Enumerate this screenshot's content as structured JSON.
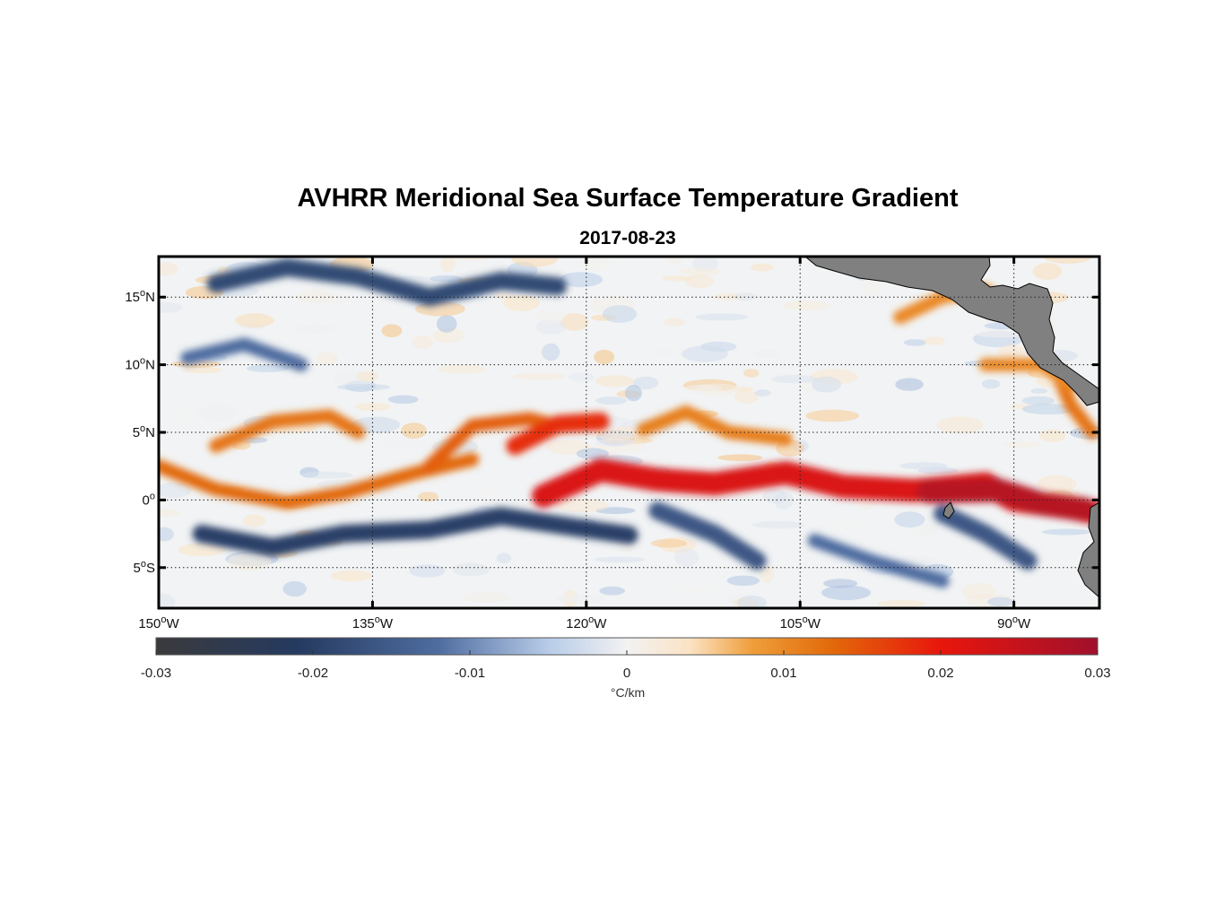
{
  "title": "AVHRR Meridional Sea Surface Temperature Gradient",
  "subtitle": "2017-08-23",
  "map": {
    "lon_range": [
      -150,
      -84
    ],
    "lat_range": [
      -8,
      18
    ],
    "lon_ticks": [
      {
        "value": -150,
        "label": "150°W"
      },
      {
        "value": -135,
        "label": "135°W"
      },
      {
        "value": -120,
        "label": "120°W"
      },
      {
        "value": -105,
        "label": "105°W"
      },
      {
        "value": -90,
        "label": "90°W"
      }
    ],
    "lat_ticks": [
      {
        "value": 15,
        "label": "15°N"
      },
      {
        "value": 10,
        "label": "10°N"
      },
      {
        "value": 5,
        "label": "5°N"
      },
      {
        "value": 0,
        "label": "0°"
      },
      {
        "value": -5,
        "label": "5°S"
      }
    ],
    "land_color": "#808080"
  },
  "colorbar": {
    "min": -0.03,
    "max": 0.03,
    "tick_labels": [
      "-0.03",
      "-0.02",
      "-0.01",
      "0",
      "0.01",
      "0.02",
      "0.03"
    ],
    "units": "°C/km",
    "stops": [
      {
        "v": -0.03,
        "c": "#3a3a3c"
      },
      {
        "v": -0.021,
        "c": "#253a60"
      },
      {
        "v": -0.012,
        "c": "#4f6da0"
      },
      {
        "v": -0.005,
        "c": "#b8cce8"
      },
      {
        "v": 0,
        "c": "#f2f2f2"
      },
      {
        "v": 0.004,
        "c": "#fbe3c4"
      },
      {
        "v": 0.008,
        "c": "#ef9e3a"
      },
      {
        "v": 0.013,
        "c": "#e26a0a"
      },
      {
        "v": 0.02,
        "c": "#e8160c"
      },
      {
        "v": 0.03,
        "c": "#a0102c"
      }
    ]
  },
  "features": [
    {
      "name": "equatorial-front",
      "value": 0.022,
      "pts": [
        [
          -123,
          0.3
        ],
        [
          -119,
          2.2
        ],
        [
          -115,
          1.5
        ],
        [
          -111,
          1.2
        ],
        [
          -106,
          2.0
        ],
        [
          -102,
          1.0
        ],
        [
          -97,
          0.7
        ],
        [
          -92,
          1.2
        ],
        [
          -90,
          0.0
        ],
        [
          -86,
          -0.6
        ],
        [
          -84,
          -1.0
        ]
      ]
    },
    {
      "name": "front-high-east",
      "value": 0.027,
      "pts": [
        [
          -96,
          0.6
        ],
        [
          -91,
          0.7
        ],
        [
          -88,
          -0.3
        ],
        [
          -85,
          -0.7
        ]
      ]
    },
    {
      "name": "tiw-crest-1",
      "value": 0.013,
      "pts": [
        [
          -150,
          2.5
        ],
        [
          -146,
          0.8
        ],
        [
          -141,
          -0.2
        ],
        [
          -137,
          0.5
        ],
        [
          -132,
          2.0
        ],
        [
          -128,
          3.0
        ]
      ]
    },
    {
      "name": "tiw-crest-2",
      "value": 0.012,
      "pts": [
        [
          -146,
          4.0
        ],
        [
          -142,
          5.8
        ],
        [
          -138,
          6.2
        ],
        [
          -136,
          5.0
        ]
      ]
    },
    {
      "name": "tiw-crest-3",
      "value": 0.014,
      "pts": [
        [
          -131,
          2.5
        ],
        [
          -128,
          5.5
        ],
        [
          -124,
          6.0
        ],
        [
          -122,
          5.5
        ]
      ]
    },
    {
      "name": "tiw-crest-4",
      "value": 0.018,
      "pts": [
        [
          -125,
          4.0
        ],
        [
          -122,
          5.6
        ],
        [
          -119,
          5.8
        ]
      ]
    },
    {
      "name": "tiw-crest-5",
      "value": 0.011,
      "pts": [
        [
          -116,
          5.2
        ],
        [
          -113,
          6.5
        ],
        [
          -110,
          5.0
        ],
        [
          -106,
          4.5
        ]
      ]
    },
    {
      "name": "south-cold-band-1",
      "value": -0.02,
      "pts": [
        [
          -147,
          -2.5
        ],
        [
          -142,
          -3.5
        ],
        [
          -137,
          -2.5
        ],
        [
          -131,
          -2.2
        ],
        [
          -126,
          -1.2
        ],
        [
          -121,
          -2.0
        ],
        [
          -117,
          -2.6
        ]
      ]
    },
    {
      "name": "south-cold-band-2",
      "value": -0.016,
      "pts": [
        [
          -115,
          -0.8
        ],
        [
          -111,
          -2.5
        ],
        [
          -108,
          -4.5
        ]
      ]
    },
    {
      "name": "south-cold-band-3",
      "value": -0.012,
      "pts": [
        [
          -104,
          -3.0
        ],
        [
          -100,
          -4.5
        ],
        [
          -95,
          -6.0
        ]
      ]
    },
    {
      "name": "south-cold-band-4",
      "value": -0.016,
      "pts": [
        [
          -95,
          -1.0
        ],
        [
          -92,
          -2.5
        ],
        [
          -89,
          -4.5
        ]
      ]
    },
    {
      "name": "north-cold-band-1",
      "value": -0.018,
      "pts": [
        [
          -146,
          16.0
        ],
        [
          -141,
          17.2
        ],
        [
          -136,
          16.5
        ],
        [
          -131,
          15.0
        ],
        [
          -126,
          16.2
        ],
        [
          -122,
          15.8
        ]
      ]
    },
    {
      "name": "north-cold-band-2",
      "value": -0.012,
      "pts": [
        [
          -148,
          10.5
        ],
        [
          -144,
          11.5
        ],
        [
          -140,
          10.0
        ]
      ]
    },
    {
      "name": "north-warm-patch",
      "value": 0.01,
      "pts": [
        [
          -98,
          13.5
        ],
        [
          -95,
          15.0
        ],
        [
          -92,
          15.5
        ],
        [
          -88,
          12.5
        ]
      ]
    },
    {
      "name": "coast-warm-band",
      "value": 0.012,
      "pts": [
        [
          -87,
          9.5
        ],
        [
          -86,
          7.0
        ],
        [
          -84.5,
          5.0
        ]
      ]
    },
    {
      "name": "ne-warm-strip",
      "value": 0.01,
      "pts": [
        [
          -92,
          10.0
        ],
        [
          -88,
          10.0
        ],
        [
          -86,
          8.5
        ]
      ]
    }
  ]
}
